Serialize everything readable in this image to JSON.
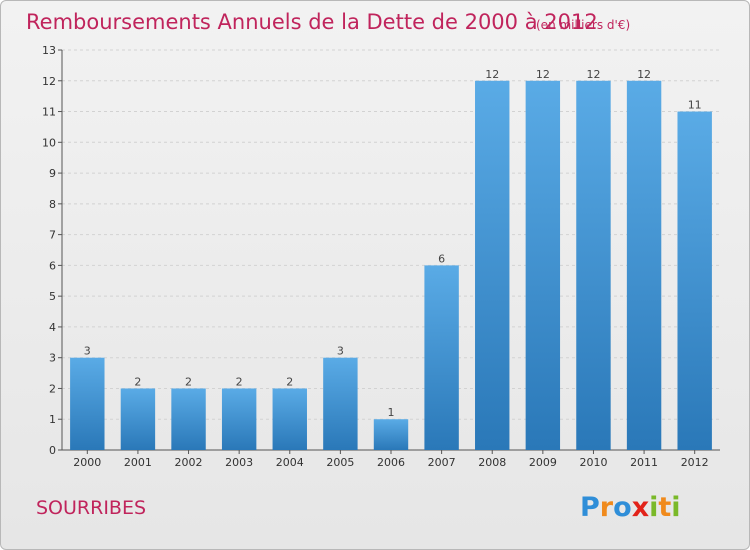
{
  "chart_data": {
    "type": "bar",
    "title": "Remboursements Annuels de la Dette de 2000 à 2012",
    "subtitle": "(en milliers d'€)",
    "categories": [
      "2000",
      "2001",
      "2002",
      "2003",
      "2004",
      "2005",
      "2006",
      "2007",
      "2008",
      "2009",
      "2010",
      "2011",
      "2012"
    ],
    "values": [
      3,
      2,
      2,
      2,
      2,
      3,
      1,
      6,
      12,
      12,
      12,
      12,
      11
    ],
    "ylim": [
      0,
      13
    ],
    "yticks": [
      0,
      1,
      2,
      3,
      4,
      5,
      6,
      7,
      8,
      9,
      10,
      11,
      12,
      13
    ],
    "xlabel": "",
    "ylabel": "",
    "grid": true,
    "bar_color_top": "#5aabe6",
    "bar_color_bottom": "#2a78b8"
  },
  "commune": "SOURRIBES",
  "brand": {
    "letters": [
      "P",
      "r",
      "o",
      "x",
      "i",
      "t",
      "i"
    ],
    "colors": [
      "#2f8ed8",
      "#f08a1c",
      "#2f8ed8",
      "#e2231a",
      "#7ab929",
      "#f08a1c",
      "#7ab929"
    ]
  }
}
